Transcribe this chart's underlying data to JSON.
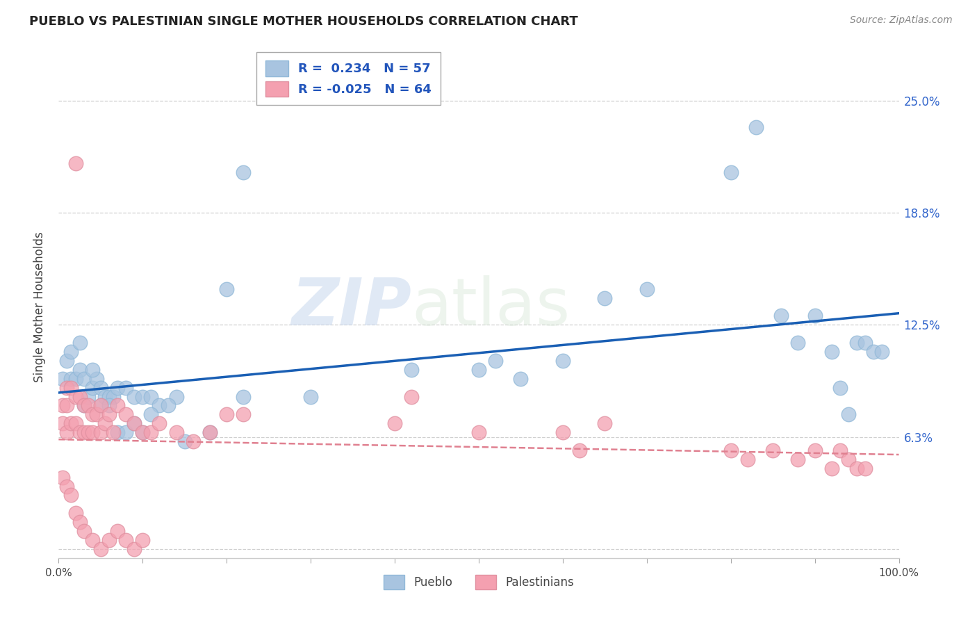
{
  "title": "PUEBLO VS PALESTINIAN SINGLE MOTHER HOUSEHOLDS CORRELATION CHART",
  "source": "Source: ZipAtlas.com",
  "ylabel": "Single Mother Households",
  "xlim": [
    0,
    1
  ],
  "ylim": [
    -0.005,
    0.275
  ],
  "yticks": [
    0.0,
    0.0625,
    0.125,
    0.1875,
    0.25
  ],
  "ytick_labels": [
    "",
    "6.3%",
    "12.5%",
    "18.8%",
    "25.0%"
  ],
  "pueblo_color": "#a8c4e0",
  "palestinian_color": "#f4a0b0",
  "pueblo_line_color": "#1a5fb4",
  "palestinian_line_color": "#e08090",
  "legend_pueblo_r": " 0.234",
  "legend_pueblo_n": "57",
  "legend_palestinian_r": "-0.025",
  "legend_palestinian_n": "64",
  "watermark_zip": "ZIP",
  "watermark_atlas": "atlas",
  "pueblo_x": [
    0.005,
    0.01,
    0.015,
    0.02,
    0.025,
    0.03,
    0.035,
    0.04,
    0.045,
    0.05,
    0.055,
    0.06,
    0.065,
    0.07,
    0.08,
    0.09,
    0.1,
    0.11,
    0.12,
    0.14,
    0.2,
    0.22,
    0.5,
    0.52,
    0.55,
    0.6,
    0.65,
    0.7,
    0.8,
    0.83,
    0.86,
    0.88,
    0.9,
    0.92,
    0.93,
    0.94,
    0.95,
    0.96,
    0.97,
    0.98,
    0.015,
    0.025,
    0.03,
    0.04,
    0.05,
    0.06,
    0.07,
    0.08,
    0.09,
    0.1,
    0.11,
    0.13,
    0.15,
    0.18,
    0.22,
    0.3,
    0.42
  ],
  "pueblo_y": [
    0.095,
    0.105,
    0.095,
    0.095,
    0.1,
    0.095,
    0.085,
    0.09,
    0.095,
    0.09,
    0.085,
    0.085,
    0.085,
    0.09,
    0.09,
    0.085,
    0.085,
    0.085,
    0.08,
    0.085,
    0.145,
    0.21,
    0.1,
    0.105,
    0.095,
    0.105,
    0.14,
    0.145,
    0.21,
    0.235,
    0.13,
    0.115,
    0.13,
    0.11,
    0.09,
    0.075,
    0.115,
    0.115,
    0.11,
    0.11,
    0.11,
    0.115,
    0.08,
    0.1,
    0.08,
    0.08,
    0.065,
    0.065,
    0.07,
    0.065,
    0.075,
    0.08,
    0.06,
    0.065,
    0.085,
    0.085,
    0.1
  ],
  "palestinian_x": [
    0.005,
    0.005,
    0.01,
    0.01,
    0.01,
    0.015,
    0.015,
    0.02,
    0.02,
    0.025,
    0.025,
    0.03,
    0.03,
    0.035,
    0.035,
    0.04,
    0.04,
    0.045,
    0.05,
    0.05,
    0.055,
    0.06,
    0.065,
    0.07,
    0.08,
    0.09,
    0.1,
    0.11,
    0.12,
    0.14,
    0.16,
    0.18,
    0.2,
    0.22,
    0.4,
    0.42,
    0.5,
    0.6,
    0.62,
    0.65,
    0.8,
    0.82,
    0.85,
    0.88,
    0.9,
    0.92,
    0.93,
    0.94,
    0.95,
    0.96,
    0.005,
    0.01,
    0.015,
    0.02,
    0.025,
    0.03,
    0.04,
    0.05,
    0.06,
    0.07,
    0.08,
    0.09,
    0.1,
    0.02
  ],
  "palestinian_y": [
    0.08,
    0.07,
    0.09,
    0.08,
    0.065,
    0.09,
    0.07,
    0.085,
    0.07,
    0.085,
    0.065,
    0.08,
    0.065,
    0.08,
    0.065,
    0.075,
    0.065,
    0.075,
    0.08,
    0.065,
    0.07,
    0.075,
    0.065,
    0.08,
    0.075,
    0.07,
    0.065,
    0.065,
    0.07,
    0.065,
    0.06,
    0.065,
    0.075,
    0.075,
    0.07,
    0.085,
    0.065,
    0.065,
    0.055,
    0.07,
    0.055,
    0.05,
    0.055,
    0.05,
    0.055,
    0.045,
    0.055,
    0.05,
    0.045,
    0.045,
    0.04,
    0.035,
    0.03,
    0.02,
    0.015,
    0.01,
    0.005,
    0.0,
    0.005,
    0.01,
    0.005,
    0.0,
    0.005,
    0.215
  ]
}
